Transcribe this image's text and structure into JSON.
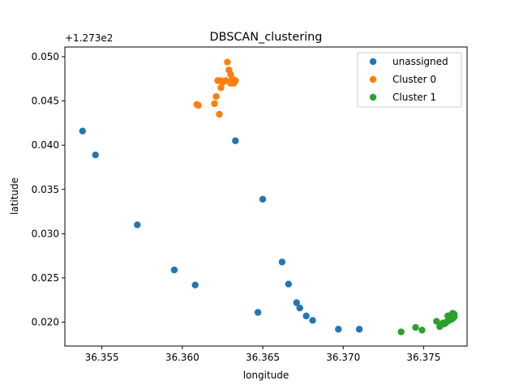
{
  "chart_data": {
    "type": "scatter",
    "title": "DBSCAN_clustering",
    "xlabel": "longitude",
    "ylabel": "latitude",
    "y_offset_label": "+1.273e2",
    "xlim": [
      36.3527,
      36.3777
    ],
    "ylim": [
      0.0173,
      0.0511
    ],
    "xticks": [
      36.355,
      36.36,
      36.365,
      36.37,
      36.375
    ],
    "xtick_labels": [
      "36.355",
      "36.360",
      "36.365",
      "36.370",
      "36.375"
    ],
    "yticks": [
      0.02,
      0.025,
      0.03,
      0.035,
      0.04,
      0.045,
      0.05
    ],
    "ytick_labels": [
      "0.020",
      "0.025",
      "0.030",
      "0.035",
      "0.040",
      "0.045",
      "0.050"
    ],
    "grid": false,
    "legend_position": "top-right",
    "series": [
      {
        "name": "unassigned",
        "color": "#1f77b4",
        "points": [
          [
            36.3538,
            0.0416
          ],
          [
            36.3546,
            0.0389
          ],
          [
            36.3572,
            0.031
          ],
          [
            36.3595,
            0.0259
          ],
          [
            36.3608,
            0.0242
          ],
          [
            36.3633,
            0.0405
          ],
          [
            36.365,
            0.0339
          ],
          [
            36.3647,
            0.0211
          ],
          [
            36.3662,
            0.0268
          ],
          [
            36.3666,
            0.0243
          ],
          [
            36.3671,
            0.0222
          ],
          [
            36.3673,
            0.0216
          ],
          [
            36.3677,
            0.0207
          ],
          [
            36.3681,
            0.0202
          ],
          [
            36.3697,
            0.0192
          ],
          [
            36.371,
            0.0192
          ]
        ]
      },
      {
        "name": "Cluster 0",
        "color": "#ff7f0e",
        "points": [
          [
            36.3628,
            0.0494
          ],
          [
            36.3629,
            0.0485
          ],
          [
            36.363,
            0.048
          ],
          [
            36.3631,
            0.0475
          ],
          [
            36.3627,
            0.0473
          ],
          [
            36.3624,
            0.0473
          ],
          [
            36.3622,
            0.0473
          ],
          [
            36.3625,
            0.0471
          ],
          [
            36.363,
            0.047
          ],
          [
            36.3633,
            0.0473
          ],
          [
            36.3632,
            0.047
          ],
          [
            36.3624,
            0.0465
          ],
          [
            36.3621,
            0.0455
          ],
          [
            36.362,
            0.0447
          ],
          [
            36.3609,
            0.0446
          ],
          [
            36.361,
            0.0445
          ],
          [
            36.3623,
            0.0435
          ]
        ]
      },
      {
        "name": "Cluster 1",
        "color": "#2ca02c",
        "points": [
          [
            36.3736,
            0.0189
          ],
          [
            36.3745,
            0.0194
          ],
          [
            36.3749,
            0.0191
          ],
          [
            36.3758,
            0.0201
          ],
          [
            36.376,
            0.0195
          ],
          [
            36.3761,
            0.0197
          ],
          [
            36.3762,
            0.0199
          ],
          [
            36.3763,
            0.0198
          ],
          [
            36.3764,
            0.02
          ],
          [
            36.3765,
            0.0201
          ],
          [
            36.3765,
            0.0207
          ],
          [
            36.3766,
            0.0202
          ],
          [
            36.3766,
            0.0205
          ],
          [
            36.3767,
            0.0203
          ],
          [
            36.3767,
            0.0208
          ],
          [
            36.3768,
            0.0204
          ],
          [
            36.3768,
            0.021
          ],
          [
            36.3769,
            0.0206
          ],
          [
            36.3769,
            0.0209
          ]
        ]
      }
    ]
  }
}
